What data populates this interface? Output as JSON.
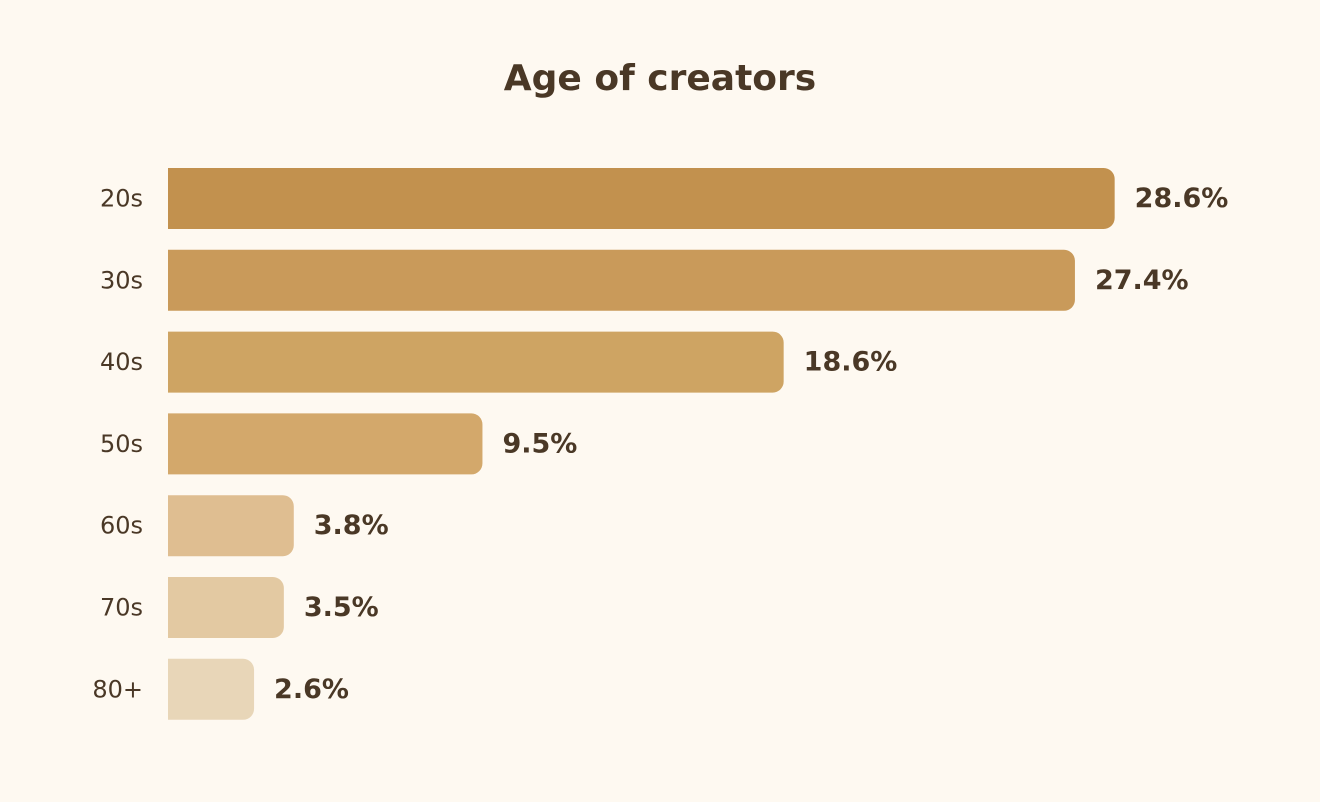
{
  "chart_data": {
    "type": "bar",
    "orientation": "horizontal",
    "title": "Age of creators",
    "categories": [
      "20s",
      "30s",
      "40s",
      "50s",
      "60s",
      "70s",
      "80+"
    ],
    "values": [
      28.6,
      27.4,
      18.6,
      9.5,
      3.8,
      3.5,
      2.6
    ],
    "value_labels": [
      "28.6%",
      "27.4%",
      "18.6%",
      "9.5%",
      "3.8%",
      "3.5%",
      "2.6%"
    ],
    "unit": "%",
    "grid": false,
    "legend": "none",
    "colors": [
      "#c2914e",
      "#c99a5a",
      "#cea463",
      "#d3a86b",
      "#dfbe91",
      "#e3c9a2",
      "#e8d6b8"
    ]
  }
}
